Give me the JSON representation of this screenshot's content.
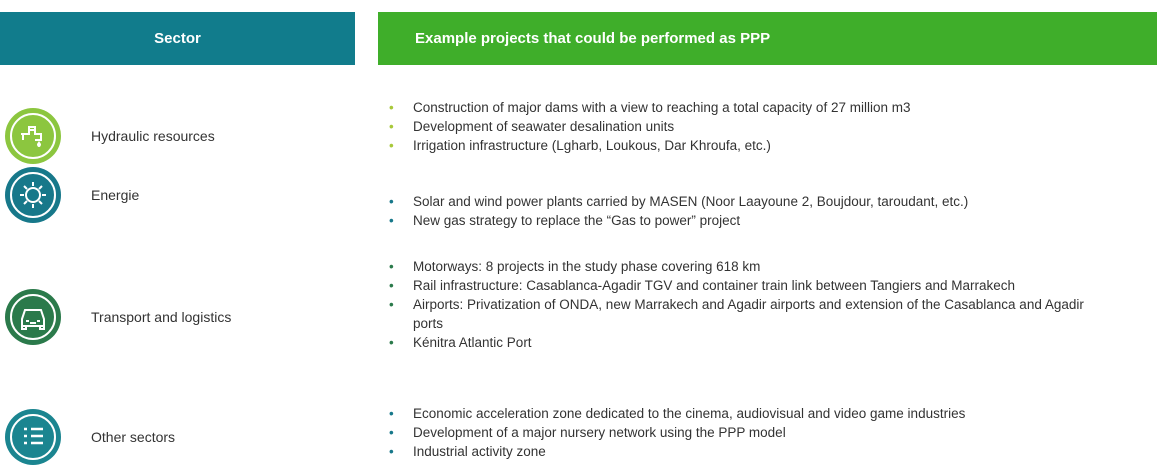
{
  "header": {
    "sector": "Sector",
    "projects": "Example projects that could be performed as PPP"
  },
  "rows": [
    {
      "sector": "Hydraulic resources",
      "projects": [
        "Construction of major dams with a view to reaching a total capacity of 27 million m3",
        "Development of seawater desalination units",
        "Irrigation infrastructure (Lgharb, Loukous, Dar Khroufa, etc.)"
      ]
    },
    {
      "sector": "Energie",
      "projects": [
        "Solar and wind power plants carried by MASEN (Noor Laayoune 2, Boujdour, taroudant, etc.)",
        "New gas strategy to replace the “Gas to power” project"
      ]
    },
    {
      "sector": "Transport and logistics",
      "projects": [
        "Motorways: 8 projects in the study phase covering 618 km",
        "Rail infrastructure: Casablanca-Agadir TGV and container train link between Tangiers and Marrakech",
        "Airports: Privatization of ONDA, new Marrakech and Agadir airports and extension of the Casablanca and Agadir ports",
        "Kénitra Atlantic Port"
      ]
    },
    {
      "sector": "Other sectors",
      "projects": [
        "Economic acceleration zone dedicated to the cinema, audiovisual and video game industries",
        "Development of a major nursery network using the PPP model",
        "Industrial activity zone"
      ]
    }
  ]
}
